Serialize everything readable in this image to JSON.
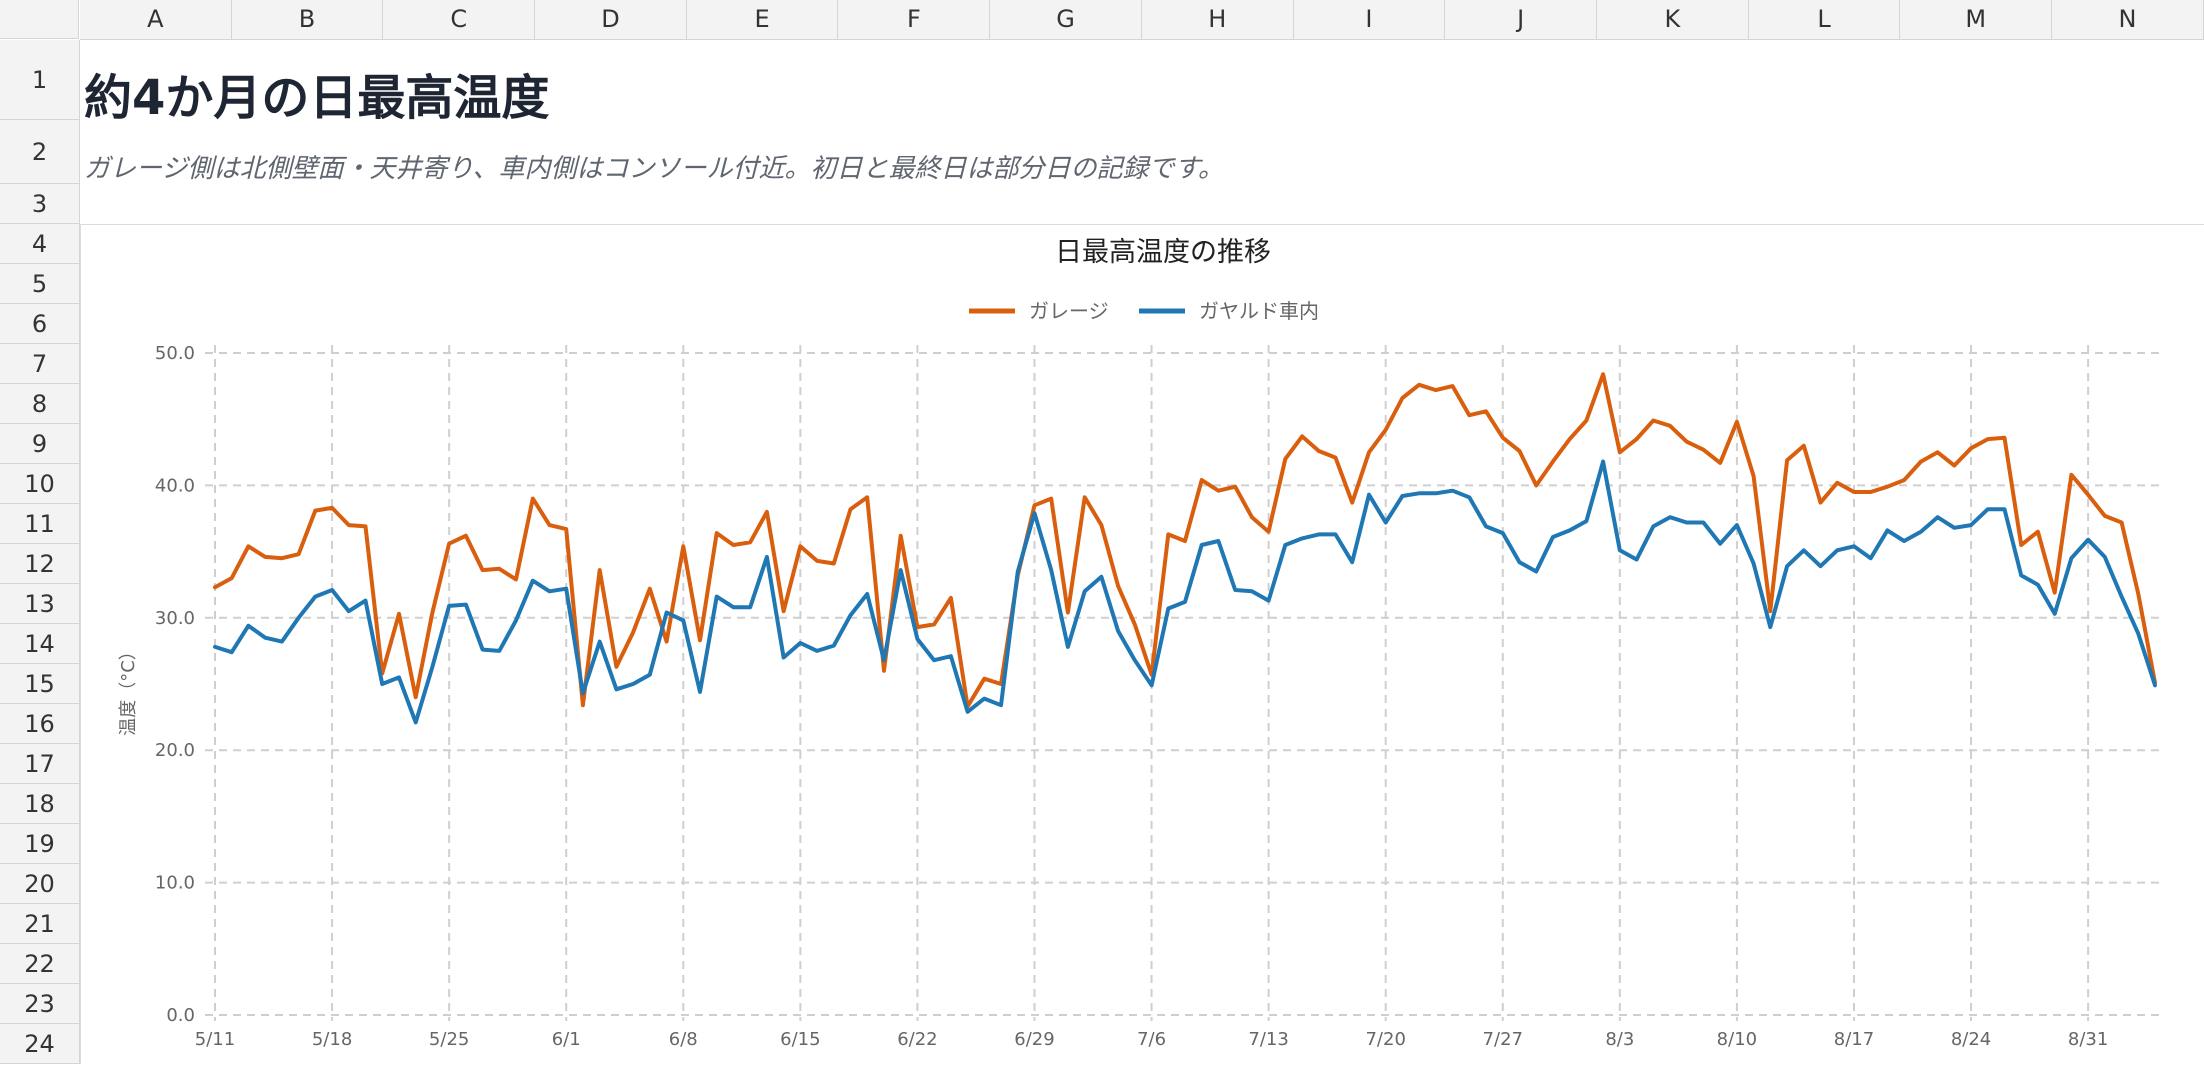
{
  "sheet": {
    "columns": [
      "A",
      "B",
      "C",
      "D",
      "E",
      "F",
      "G",
      "H",
      "I",
      "J",
      "K",
      "L",
      "M",
      "N"
    ],
    "rows": [
      "1",
      "2",
      "3",
      "4",
      "5",
      "6",
      "7",
      "8",
      "9",
      "10",
      "11",
      "12",
      "13",
      "14",
      "15",
      "16",
      "17",
      "18",
      "19",
      "20",
      "21",
      "22",
      "23",
      "24"
    ],
    "title": "約4か月の日最高温度",
    "note": "ガレージ側は北側壁面・天井寄り、車内側はコンソール付近。初日と最終日は部分日の記録です。"
  },
  "chart_data": {
    "type": "line",
    "title": "日最高温度の推移",
    "ylabel": "温度（°C）",
    "xlabel": "",
    "ylim": [
      0,
      50
    ],
    "y_ticks": [
      "0.0",
      "10.0",
      "20.0",
      "30.0",
      "40.0",
      "50.0"
    ],
    "x_tick_labels": [
      "5/11",
      "5/18",
      "5/25",
      "6/1",
      "6/8",
      "6/15",
      "6/22",
      "6/29",
      "7/6",
      "7/13",
      "7/20",
      "7/27",
      "8/3",
      "8/10",
      "8/17",
      "8/24",
      "8/31"
    ],
    "x_start_label": "5/11",
    "legend_position": "top-center",
    "grid": true,
    "series": [
      {
        "name": "ガレージ",
        "color": "#d95f0e",
        "values": [
          32.3,
          33.0,
          35.4,
          34.6,
          34.5,
          34.8,
          38.1,
          38.3,
          37.0,
          36.9,
          25.8,
          30.3,
          24.0,
          30.4,
          35.6,
          36.2,
          33.6,
          33.7,
          32.9,
          39.0,
          37.0,
          36.7,
          23.4,
          33.6,
          26.3,
          28.9,
          32.2,
          28.2,
          35.4,
          28.3,
          36.4,
          35.5,
          35.7,
          38.0,
          30.5,
          35.4,
          34.3,
          34.1,
          38.2,
          39.1,
          26.0,
          36.2,
          29.3,
          29.5,
          31.5,
          23.3,
          25.4,
          25.0,
          33.2,
          38.5,
          39.0,
          30.4,
          39.1,
          37.0,
          32.4,
          29.5,
          25.7,
          36.3,
          35.8,
          40.4,
          39.6,
          39.9,
          37.6,
          36.5,
          42.0,
          43.7,
          42.6,
          42.1,
          38.7,
          42.5,
          44.2,
          46.6,
          47.6,
          47.2,
          47.5,
          45.3,
          45.6,
          43.6,
          42.6,
          40.0,
          41.8,
          43.5,
          44.9,
          48.4,
          42.5,
          43.5,
          44.9,
          44.5,
          43.3,
          42.7,
          41.7,
          44.8,
          40.7,
          30.5,
          41.9,
          43.0,
          38.7,
          40.2,
          39.5,
          39.5,
          39.9,
          40.4,
          41.8,
          42.5,
          41.5,
          42.8,
          43.5,
          43.6,
          35.5,
          36.5,
          31.9,
          40.8,
          39.3,
          37.7,
          37.2,
          31.8,
          25.1
        ]
      },
      {
        "name": "ガヤルド車内",
        "color": "#1f77b4",
        "values": [
          27.8,
          27.4,
          29.4,
          28.5,
          28.2,
          30.0,
          31.6,
          32.1,
          30.5,
          31.3,
          25.0,
          25.5,
          22.1,
          26.3,
          30.9,
          31.0,
          27.6,
          27.5,
          29.8,
          32.8,
          32.0,
          32.2,
          24.3,
          28.2,
          24.6,
          25.0,
          25.7,
          30.4,
          29.8,
          24.4,
          31.6,
          30.8,
          30.8,
          34.6,
          27.0,
          28.1,
          27.5,
          27.9,
          30.2,
          31.8,
          26.8,
          33.6,
          28.4,
          26.8,
          27.1,
          22.9,
          23.9,
          23.4,
          33.5,
          37.9,
          33.6,
          27.8,
          32.0,
          33.1,
          29.0,
          26.8,
          24.9,
          30.7,
          31.2,
          35.5,
          35.8,
          32.1,
          32.0,
          31.3,
          35.5,
          36.0,
          36.3,
          36.3,
          34.2,
          39.3,
          37.2,
          39.2,
          39.4,
          39.4,
          39.6,
          39.1,
          36.9,
          36.4,
          34.2,
          33.5,
          36.1,
          36.6,
          37.3,
          41.8,
          35.1,
          34.4,
          36.9,
          37.6,
          37.2,
          37.2,
          35.6,
          37.0,
          34.1,
          29.3,
          33.9,
          35.1,
          33.9,
          35.1,
          35.4,
          34.5,
          36.6,
          35.8,
          36.5,
          37.6,
          36.8,
          37.0,
          38.2,
          38.2,
          33.2,
          32.5,
          30.3,
          34.5,
          35.9,
          34.6,
          31.6,
          28.8,
          24.9
        ]
      }
    ]
  }
}
